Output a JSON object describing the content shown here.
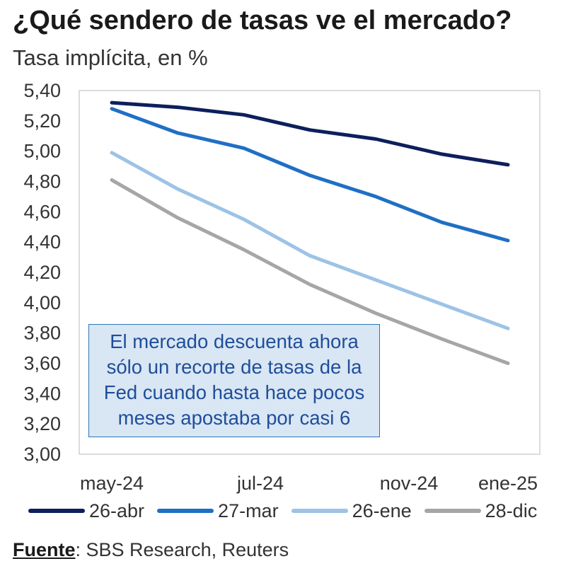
{
  "title": "¿Qué sendero de tasas ve el mercado?",
  "subtitle": "Tasa implícita, en %",
  "annotation": {
    "lines": [
      "El mercado descuenta ahora",
      "sólo un recorte de tasas de la",
      "Fed cuando hasta hace pocos",
      "meses apostaba por casi 6"
    ]
  },
  "source": {
    "label": "Fuente",
    "text": ": SBS Research, Reuters"
  },
  "chart_data": {
    "type": "line",
    "title": "¿Qué sendero de tasas ve el mercado?",
    "ylabel": "Tasa implícita, en %",
    "x_positions": [
      0,
      1,
      2,
      3,
      4,
      5,
      6,
      7,
      8
    ],
    "x_tick_positions": [
      0,
      3,
      6,
      8
    ],
    "x_tick_labels": [
      "may-24",
      "jul-24",
      "nov-24",
      "ene-25"
    ],
    "ylim": [
      3.0,
      5.4
    ],
    "y_ticks": [
      3.0,
      3.2,
      3.4,
      3.6,
      3.8,
      4.0,
      4.2,
      4.4,
      4.6,
      4.8,
      5.0,
      5.2,
      5.4
    ],
    "y_tick_labels": [
      "3,00",
      "3,20",
      "3,40",
      "3,60",
      "3,80",
      "4,00",
      "4,20",
      "4,40",
      "4,60",
      "4,80",
      "5,00",
      "5,20",
      "5,40"
    ],
    "legend_position": "bottom",
    "series": [
      {
        "name": "26-abr",
        "color": "#0d1f5c",
        "values": [
          5.32,
          5.29,
          5.24,
          5.14,
          5.08,
          4.98,
          4.91
        ]
      },
      {
        "name": "27-mar",
        "color": "#1f6fc5",
        "values": [
          5.28,
          5.12,
          5.02,
          4.84,
          4.7,
          4.53,
          4.41
        ]
      },
      {
        "name": "26-ene",
        "color": "#9dc3e6",
        "values": [
          4.99,
          4.75,
          4.55,
          4.31,
          4.15,
          3.99,
          3.83
        ]
      },
      {
        "name": "28-dic",
        "color": "#a6a6a6",
        "values": [
          4.81,
          4.56,
          4.35,
          4.12,
          3.93,
          3.76,
          3.6
        ]
      }
    ]
  }
}
